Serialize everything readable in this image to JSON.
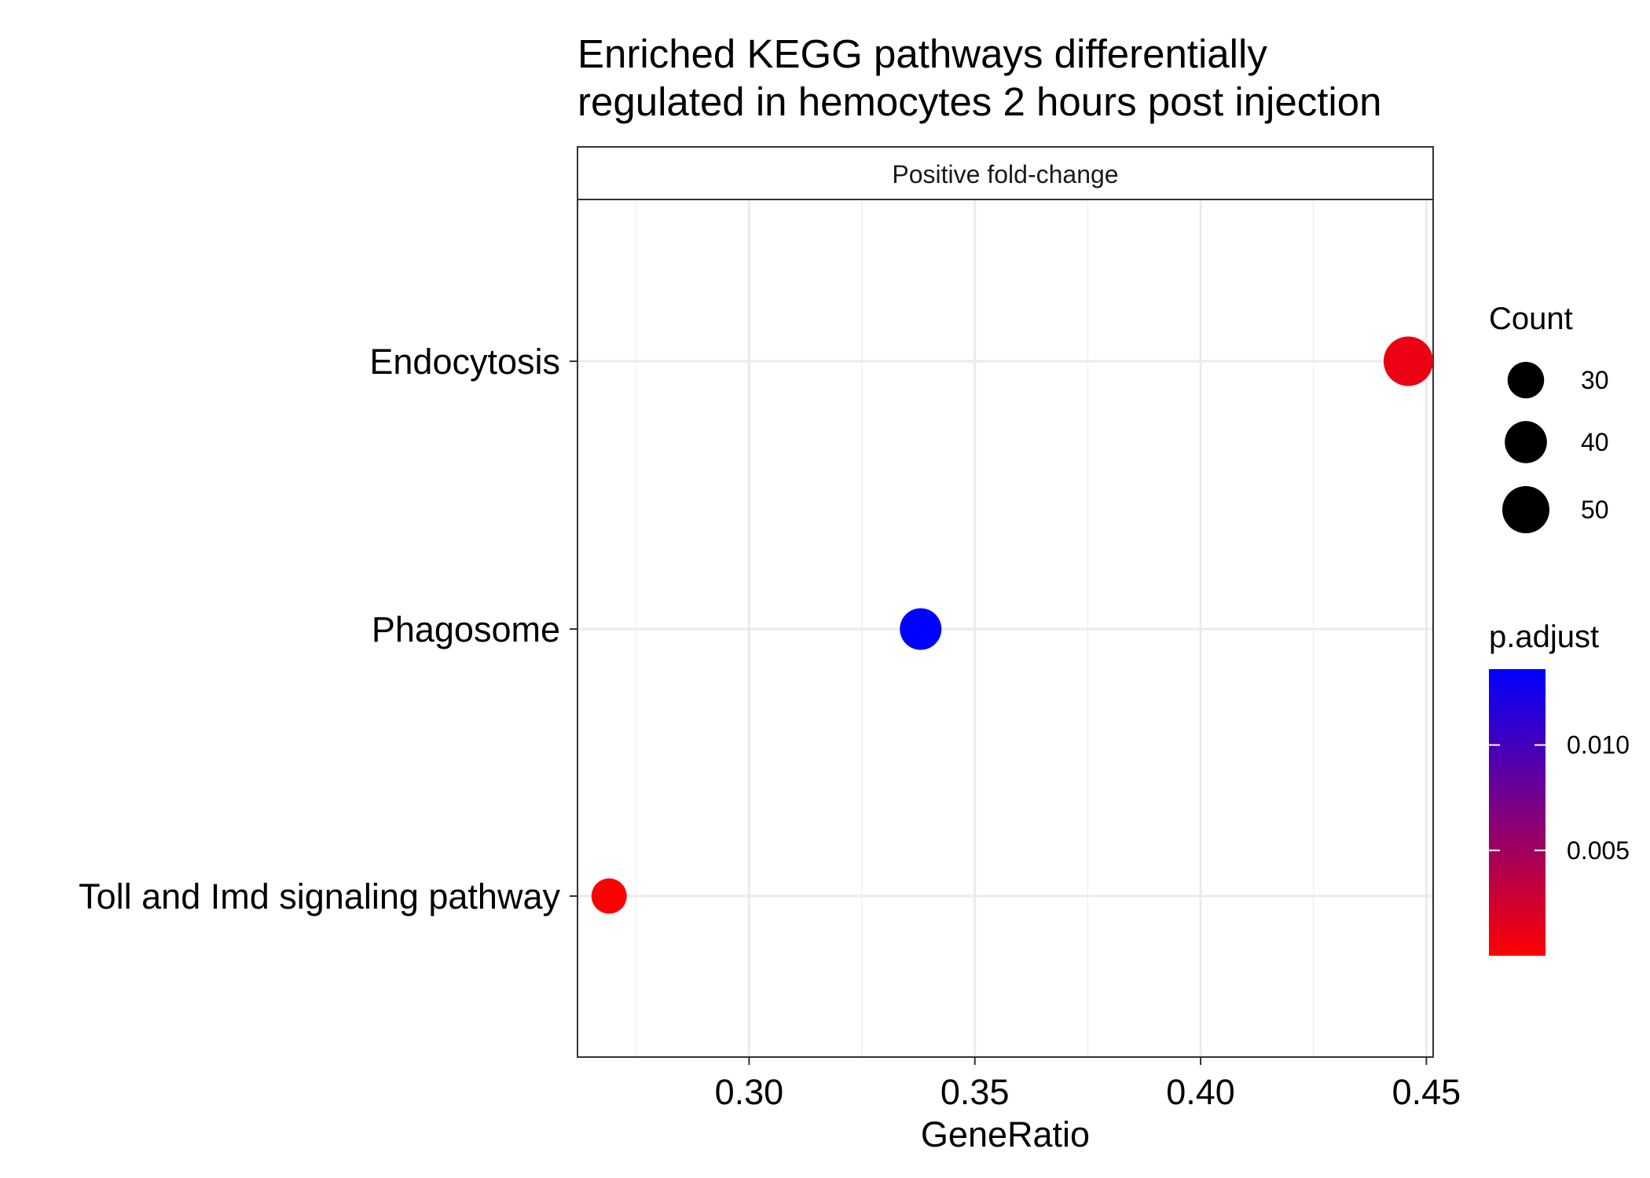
{
  "chart_data": {
    "type": "scatter",
    "title_lines": [
      "Enriched KEGG pathways differentially",
      "regulated in hemocytes 2 hours post injection"
    ],
    "facet_label": "Positive fold-change",
    "xlabel": "GeneRatio",
    "ylabel": "",
    "xlim": [
      0.262,
      0.4515
    ],
    "x_major_ticks": [
      0.3,
      0.35,
      0.4,
      0.45
    ],
    "x_tick_labels": [
      "0.30",
      "0.35",
      "0.40",
      "0.45"
    ],
    "x_minor_ticks": [
      0.275,
      0.325,
      0.375,
      0.425
    ],
    "grid": true,
    "categories": [
      "Endocytosis",
      "Phagosome",
      "Toll and Imd signaling pathway"
    ],
    "points": [
      {
        "pathway": "Endocytosis",
        "gene_ratio": 0.446,
        "count": 55,
        "p_adjust": 0.001
      },
      {
        "pathway": "Phagosome",
        "gene_ratio": 0.338,
        "count": 39,
        "p_adjust": 0.0136
      },
      {
        "pathway": "Toll and Imd signaling pathway",
        "gene_ratio": 0.269,
        "count": 28,
        "p_adjust": 0.0001
      }
    ],
    "size_legend": {
      "title": "Count",
      "entries": [
        {
          "value": 30,
          "label": "30"
        },
        {
          "value": 40,
          "label": "40"
        },
        {
          "value": 50,
          "label": "50"
        }
      ]
    },
    "color_legend": {
      "title": "p.adjust",
      "low_color": "#FF0000",
      "high_color": "#0000FF",
      "range": [
        0.0,
        0.0136
      ],
      "ticks": [
        {
          "value": 0.005,
          "label": "0.005"
        },
        {
          "value": 0.01,
          "label": "0.010"
        }
      ]
    },
    "legend_position": "right"
  }
}
